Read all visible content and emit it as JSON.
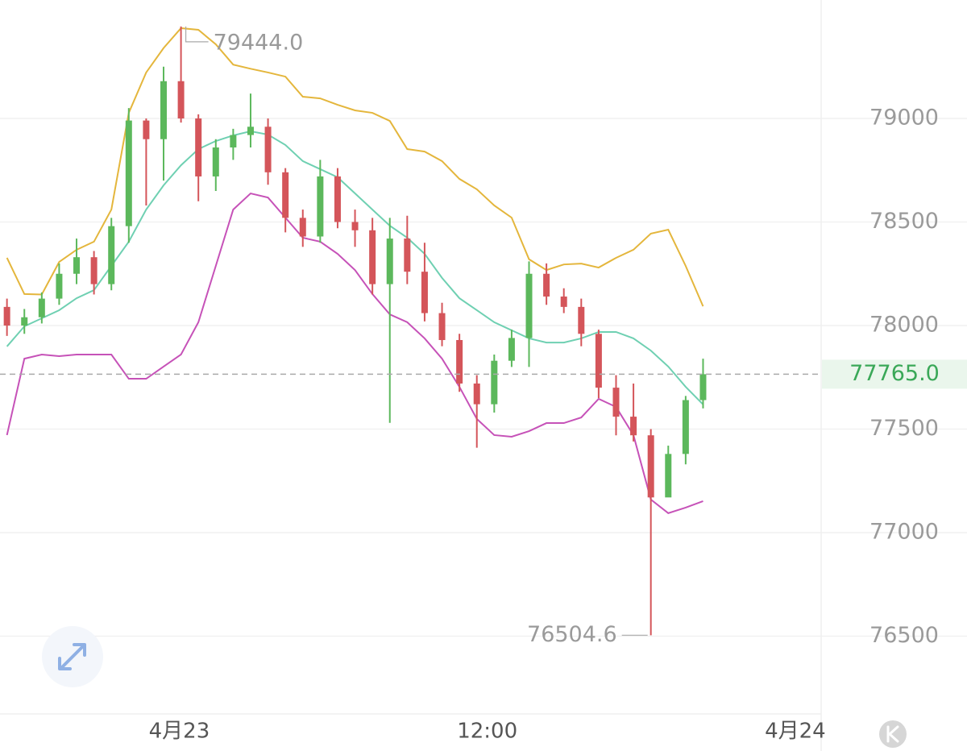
{
  "chart_data": {
    "type": "candlestick",
    "x": [
      0,
      1,
      2,
      3,
      4,
      5,
      6,
      7,
      8,
      9,
      10,
      11,
      12,
      13,
      14,
      15,
      16,
      17,
      18,
      19,
      20,
      21,
      22,
      23,
      24,
      25,
      26,
      27,
      28,
      29,
      30,
      31,
      32,
      33,
      34,
      35,
      36,
      37,
      38,
      39,
      40
    ],
    "candles": {
      "open": [
        78090,
        78000,
        78040,
        78130,
        78250,
        78330,
        78200,
        78480,
        78990,
        78900,
        79180,
        79000,
        78720,
        78860,
        78920,
        78960,
        78740,
        78520,
        78430,
        78720,
        78500,
        78460,
        78200,
        78420,
        78260,
        78060,
        77930,
        77720,
        77620,
        77830,
        77940,
        78250,
        78140,
        78090,
        77960,
        77700,
        77560,
        77470,
        77170,
        77380,
        77640
      ],
      "high": [
        78130,
        78080,
        78160,
        78300,
        78420,
        78360,
        78520,
        79050,
        79000,
        79250,
        79444,
        79020,
        78900,
        78950,
        79120,
        79000,
        78760,
        78560,
        78800,
        78760,
        78560,
        78520,
        78520,
        78530,
        78400,
        78110,
        77960,
        77760,
        77860,
        77980,
        78310,
        78300,
        78180,
        78130,
        77980,
        77760,
        77720,
        77500,
        77420,
        77660,
        77840
      ],
      "low": [
        77950,
        77960,
        78010,
        78100,
        78200,
        78150,
        78170,
        78400,
        78580,
        78700,
        78980,
        78600,
        78650,
        78800,
        78860,
        78680,
        78450,
        78380,
        78400,
        78470,
        78380,
        78150,
        77530,
        78200,
        78020,
        77900,
        77680,
        77410,
        77580,
        77800,
        77800,
        78100,
        78060,
        77900,
        77650,
        77470,
        77440,
        76504.6,
        77220,
        77330,
        77600
      ],
      "close": [
        78000,
        78040,
        78130,
        78250,
        78330,
        78200,
        78480,
        78990,
        78900,
        79180,
        79000,
        78720,
        78860,
        78920,
        78960,
        78740,
        78520,
        78430,
        78720,
        78500,
        78460,
        78200,
        78420,
        78260,
        78060,
        77930,
        77720,
        77620,
        77830,
        77940,
        78250,
        78140,
        78090,
        77960,
        77700,
        77560,
        77470,
        77170,
        77380,
        77640,
        77765
      ],
      "up_color": "#5cb85c",
      "down_color": "#d4555a"
    },
    "bands": [
      {
        "color": "#e4b63c",
        "values": [
          78327,
          78152,
          78150,
          78307,
          78366,
          78405,
          78560,
          79027,
          79222,
          79340,
          79436,
          79428,
          79358,
          79260,
          79240,
          79222,
          79202,
          79105,
          79097,
          79066,
          79039,
          79027,
          78988,
          78852,
          78840,
          78794,
          78708,
          78658,
          78580,
          78521,
          78320,
          78268,
          78295,
          78299,
          78280,
          78327,
          78366,
          78444,
          78463,
          78288,
          78093
        ]
      },
      {
        "color": "#6fd0b2",
        "values": [
          77899,
          77996,
          78035,
          78074,
          78132,
          78171,
          78288,
          78405,
          78560,
          78677,
          78774,
          78852,
          78891,
          78918,
          78938,
          78922,
          78872,
          78794,
          78755,
          78716,
          78638,
          78560,
          78482,
          78424,
          78346,
          78230,
          78132,
          78074,
          78016,
          77977,
          77938,
          77918,
          77918,
          77938,
          77969,
          77969,
          77938,
          77879,
          77802,
          77704,
          77619
        ]
      },
      {
        "color": "#c652b8",
        "values": [
          77471,
          77840,
          77860,
          77852,
          77860,
          77860,
          77860,
          77743,
          77743,
          77802,
          77860,
          78016,
          78288,
          78560,
          78638,
          78618,
          78521,
          78424,
          78405,
          78346,
          78268,
          78152,
          78054,
          78016,
          77938,
          77840,
          77704,
          77549,
          77471,
          77463,
          77490,
          77529,
          77529,
          77556,
          77646,
          77607,
          77471,
          77160,
          77094,
          77121,
          77152
        ]
      }
    ],
    "xlim": [
      -0.4,
      46.6
    ],
    "xticks": [
      {
        "value": 9.9,
        "label": "4月23"
      },
      {
        "value": 27.6,
        "label": "12:00"
      },
      {
        "value": 45.3,
        "label": "4月24"
      }
    ],
    "ylim": [
      76124.5,
      79572
    ],
    "yticks": [
      76500,
      77000,
      77500,
      78000,
      78500,
      79000
    ],
    "grid": true,
    "high_label": "79444.0",
    "low_label": "76504.6",
    "last_price_label": "77765.0",
    "last_price_color": "#3aa858"
  }
}
